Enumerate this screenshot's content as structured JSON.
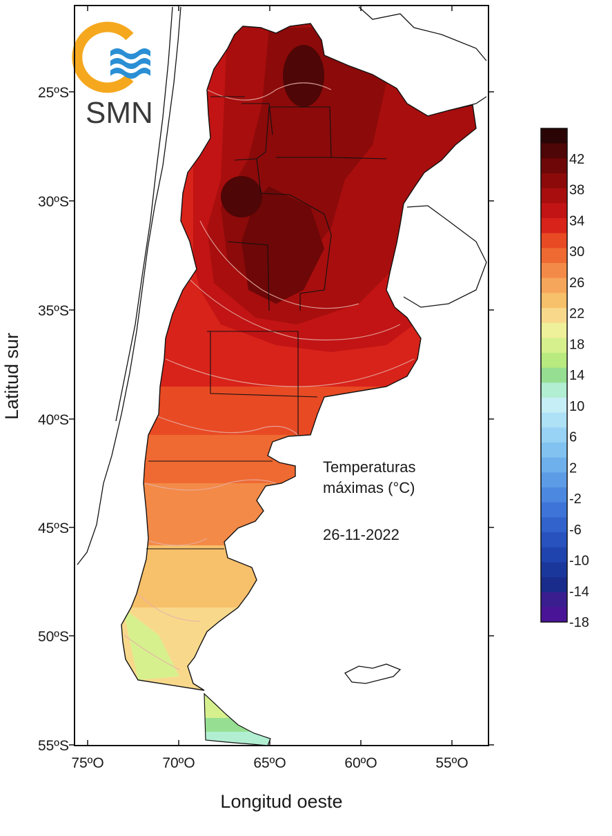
{
  "map": {
    "title_line1": "Temperaturas",
    "title_line2": "máximas (°C)",
    "date": "26-11-2022",
    "xlabel": "Longitud oeste",
    "ylabel": "Latitud sur",
    "lon_ticks": [
      "75ºO",
      "70ºO",
      "65ºO",
      "60ºO",
      "55ºO"
    ],
    "lat_ticks": [
      "25ºS",
      "30ºS",
      "35ºS",
      "40ºS",
      "45ºS",
      "50ºS",
      "55ºS"
    ]
  },
  "logo": {
    "text": "SMN"
  },
  "legend": {
    "labels": [
      "42",
      "38",
      "34",
      "30",
      "26",
      "22",
      "18",
      "14",
      "10",
      "6",
      "2",
      "-2",
      "-6",
      "-10",
      "-14",
      "-18"
    ],
    "colors": [
      "#2b0505",
      "#4e0606",
      "#6e0707",
      "#8c0a0a",
      "#a80e0e",
      "#c21414",
      "#d8231a",
      "#e84a24",
      "#ef6a32",
      "#f38a48",
      "#f6a65a",
      "#f7c06a",
      "#f8d98c",
      "#eff09a",
      "#d7f08e",
      "#b8ea80",
      "#96df92",
      "#b2eed2",
      "#c6eef6",
      "#aee0f6",
      "#98d2f4",
      "#82c2f0",
      "#6eb0ec",
      "#5c9ce6",
      "#4c88e0",
      "#3e74d8",
      "#3262cc",
      "#2852be",
      "#2044ae",
      "#1a389c",
      "#192c8c",
      "#3a1e90",
      "#4a1496"
    ]
  }
}
